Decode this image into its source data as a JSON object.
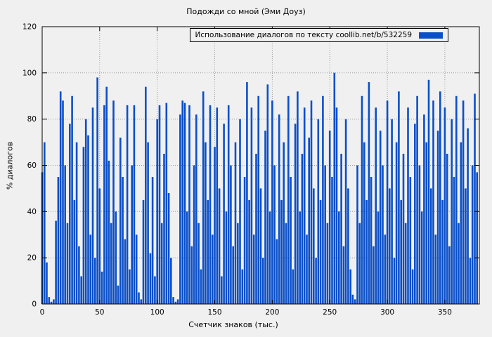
{
  "chart_data": {
    "type": "bar",
    "title": "Подожди со мной (Эми Доуз)",
    "legend": "Использование диалогов по тексту  coollib.net/b/532259",
    "xlabel": "Счетчик знаков (тыс.)",
    "ylabel": "% диалогов",
    "xlim": [
      0,
      380
    ],
    "ylim": [
      0,
      120
    ],
    "xticks": [
      0,
      50,
      100,
      150,
      200,
      250,
      300,
      350
    ],
    "yticks": [
      0,
      20,
      40,
      60,
      80,
      100,
      120
    ],
    "grid": true,
    "legend_position": "top-right",
    "series_color": "#0b4fc8",
    "background_color": "#f0f0f0",
    "x_start": 0,
    "x_step": 2,
    "values": [
      57,
      70,
      18,
      3,
      1,
      2,
      36,
      55,
      92,
      88,
      60,
      35,
      78,
      90,
      45,
      70,
      25,
      12,
      68,
      80,
      73,
      30,
      85,
      20,
      98,
      50,
      14,
      86,
      94,
      62,
      35,
      88,
      40,
      8,
      72,
      55,
      28,
      86,
      15,
      60,
      86,
      30,
      5,
      2,
      45,
      94,
      70,
      22,
      55,
      12,
      80,
      86,
      35,
      65,
      87,
      48,
      20,
      3,
      1,
      2,
      82,
      88,
      87,
      40,
      86,
      25,
      60,
      82,
      35,
      15,
      92,
      70,
      45,
      86,
      30,
      68,
      85,
      50,
      12,
      78,
      40,
      86,
      60,
      25,
      70,
      35,
      80,
      15,
      55,
      96,
      45,
      85,
      30,
      65,
      90,
      50,
      20,
      75,
      95,
      40,
      88,
      60,
      28,
      82,
      45,
      70,
      35,
      90,
      55,
      15,
      78,
      92,
      40,
      65,
      85,
      30,
      72,
      88,
      50,
      20,
      80,
      45,
      90,
      60,
      35,
      75,
      55,
      100,
      85,
      40,
      65,
      25,
      80,
      50,
      15,
      4,
      2,
      60,
      35,
      90,
      70,
      45,
      96,
      55,
      25,
      85,
      40,
      75,
      60,
      30,
      88,
      50,
      80,
      20,
      70,
      92,
      45,
      65,
      35,
      85,
      55,
      15,
      78,
      90,
      60,
      40,
      82,
      70,
      97,
      50,
      88,
      30,
      75,
      92,
      45,
      85,
      65,
      25,
      80,
      55,
      90,
      35,
      70,
      88,
      50,
      76,
      20,
      60,
      91,
      57
    ]
  }
}
